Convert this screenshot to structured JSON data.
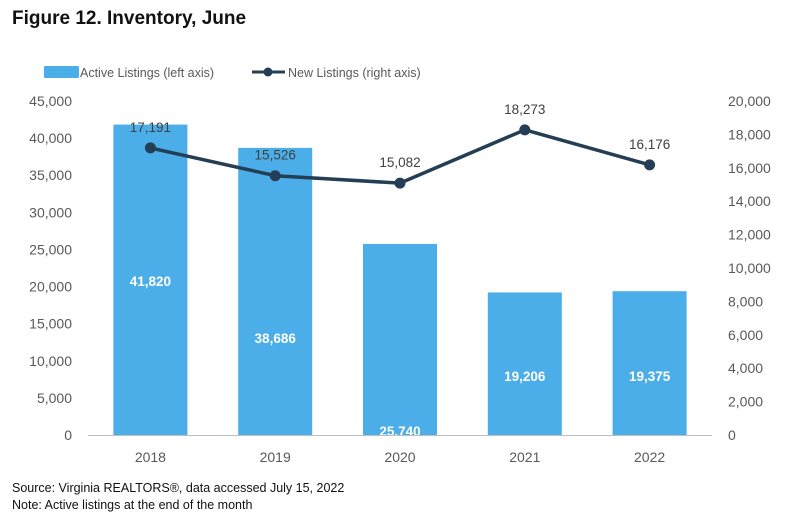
{
  "title": "Figure 12. Inventory, June",
  "source": "Source: Virginia REALTORS®, data accessed July 15, 2022",
  "note": "Note: Active listings at the end of the month",
  "colors": {
    "bar": "#4BAEE8",
    "line": "#243F55",
    "axis_text": "#595959"
  },
  "chart_data": {
    "type": "bar+line",
    "categories": [
      "2018",
      "2019",
      "2020",
      "2021",
      "2022"
    ],
    "series": [
      {
        "name": "Active Listings (left axis)",
        "type": "bar",
        "axis": "left",
        "values": [
          41820,
          38686,
          25740,
          19206,
          19375
        ],
        "labels": [
          "41,820",
          "38,686",
          "25,740",
          "19,206",
          "19,375"
        ]
      },
      {
        "name": "New Listings (right axis)",
        "type": "line",
        "axis": "right",
        "values": [
          17191,
          15526,
          15082,
          18273,
          16176
        ],
        "labels": [
          "17,191",
          "15,526",
          "15,082",
          "18,273",
          "16,176"
        ]
      }
    ],
    "left_axis": {
      "ylim": [
        0,
        45000
      ],
      "ticks": [
        "0",
        "5,000",
        "10,000",
        "15,000",
        "20,000",
        "25,000",
        "30,000",
        "35,000",
        "40,000",
        "45,000"
      ]
    },
    "right_axis": {
      "ylim": [
        0,
        20000
      ],
      "ticks": [
        "0",
        "2,000",
        "4,000",
        "6,000",
        "8,000",
        "10,000",
        "12,000",
        "14,000",
        "16,000",
        "18,000",
        "20,000"
      ]
    },
    "legend": "top-left",
    "grid": false
  }
}
